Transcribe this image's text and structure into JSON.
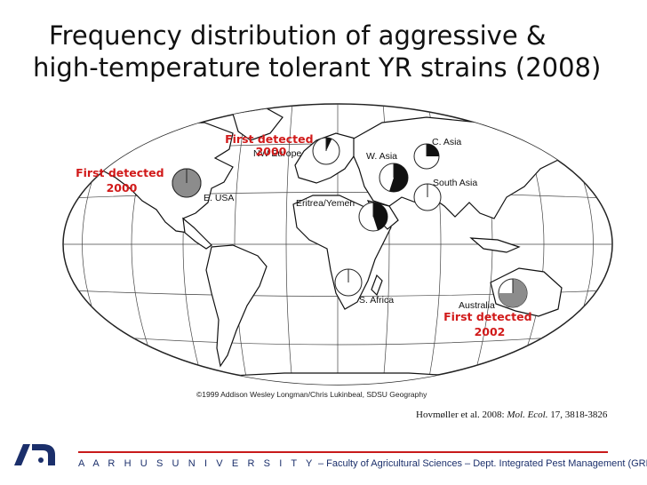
{
  "title": {
    "line1": "Frequency distribution of aggressive  &",
    "line2": "high-temperature tolerant YR strains (2008)"
  },
  "map": {
    "credit": "©1999 Addison Wesley Longman/Chris Lukinbeal, SDSU Geography",
    "regions": [
      {
        "id": "e-usa",
        "label": "E. USA",
        "fraction": 1.0,
        "detected": "First detected\n2000"
      },
      {
        "id": "nw-europe",
        "label": "NW Europe",
        "fraction": 0.07,
        "detected": "First detected\n2000"
      },
      {
        "id": "c-asia",
        "label": "C. Asia",
        "fraction": 0.25
      },
      {
        "id": "w-asia",
        "label": "W. Asia",
        "fraction": 0.55
      },
      {
        "id": "south-asia",
        "label": "South Asia",
        "fraction": 0.0
      },
      {
        "id": "eritrea-yemen",
        "label": "Eritrea/Yemen",
        "fraction": 0.45
      },
      {
        "id": "s-africa",
        "label": "S. Africa",
        "fraction": 0.0
      },
      {
        "id": "australia",
        "label": "Australia",
        "fraction": 0.75,
        "detected": "First detected\n2002"
      }
    ],
    "colors": {
      "aggressive_strain": "#111111",
      "australia_strain": "#8c8c8c",
      "usa_strain": "#8c8c8c",
      "pie_background": "#ffffff",
      "annotation": "#d11a1a"
    }
  },
  "citation": {
    "authors": "Hovmøller et al. 2008: ",
    "journal": "Mol. Ecol.",
    "volume": " 17, 3818-3826"
  },
  "footer": {
    "university": "A A R H U S   U N I V E R S I T Y",
    "department": " – Faculty of Agricultural Sciences – Dept. Integrated Pest Management  (GRRC)"
  }
}
